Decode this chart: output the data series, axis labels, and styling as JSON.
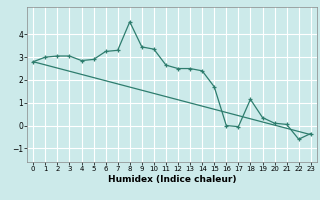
{
  "title": "",
  "xlabel": "Humidex (Indice chaleur)",
  "ylabel": "",
  "background_color": "#cceaea",
  "grid_color": "#ffffff",
  "line_color": "#2e7d6e",
  "xlim": [
    -0.5,
    23.5
  ],
  "ylim": [
    -1.6,
    5.2
  ],
  "xticks": [
    0,
    1,
    2,
    3,
    4,
    5,
    6,
    7,
    8,
    9,
    10,
    11,
    12,
    13,
    14,
    15,
    16,
    17,
    18,
    19,
    20,
    21,
    22,
    23
  ],
  "yticks": [
    -1,
    0,
    1,
    2,
    3,
    4
  ],
  "curve_x": [
    0,
    1,
    2,
    3,
    4,
    5,
    6,
    7,
    8,
    9,
    10,
    11,
    12,
    13,
    14,
    15,
    16,
    17,
    18,
    19,
    20,
    21,
    22,
    23
  ],
  "curve_y": [
    2.8,
    3.0,
    3.05,
    3.05,
    2.85,
    2.9,
    3.25,
    3.3,
    4.55,
    3.45,
    3.35,
    2.65,
    2.5,
    2.5,
    2.4,
    1.7,
    0.0,
    -0.05,
    1.15,
    0.35,
    0.1,
    0.05,
    -0.6,
    -0.35
  ],
  "trend_x": [
    0,
    23
  ],
  "trend_y": [
    2.8,
    -0.4
  ]
}
